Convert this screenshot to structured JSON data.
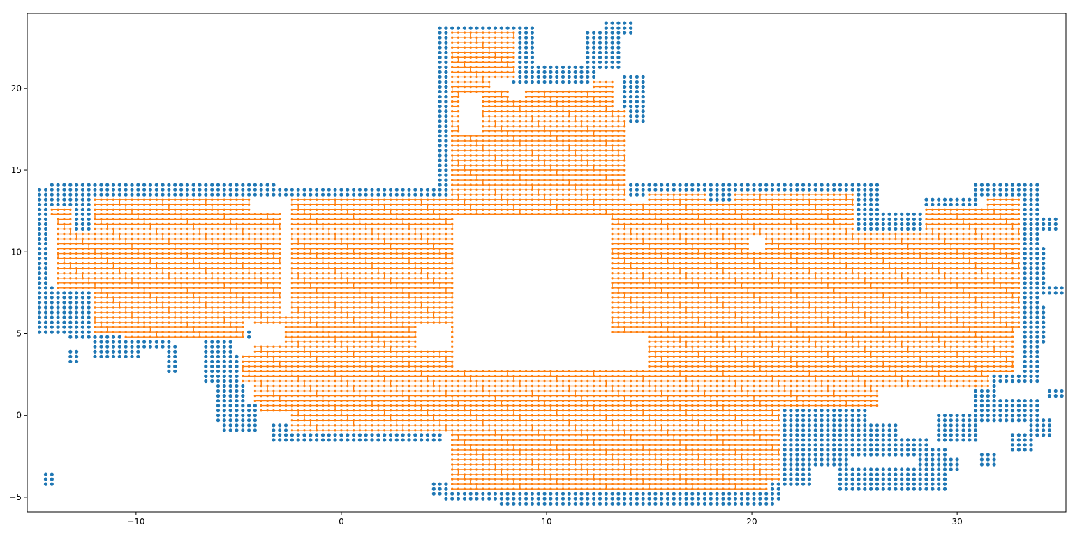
{
  "chart_data": {
    "type": "scatter",
    "title": "",
    "xlabel": "",
    "ylabel": "",
    "xlim": [
      -15.3,
      35.3
    ],
    "ylim": [
      -5.9,
      24.6
    ],
    "xticks": [
      -10,
      0,
      10,
      20,
      30
    ],
    "yticks": [
      -5,
      0,
      5,
      10,
      15,
      20
    ],
    "grid": false,
    "legend": "none",
    "grid_step": 0.3,
    "series": [
      {
        "mark": "point",
        "color": "#1f77b4",
        "rects": [
          [
            -14.7,
            -14.4,
            5.1,
            13.8
          ],
          [
            -14.1,
            -12.0,
            11.1,
            14.1
          ],
          [
            -12.3,
            -3.3,
            13.5,
            14.1
          ],
          [
            -3.3,
            4.5,
            13.5,
            13.8
          ],
          [
            4.8,
            5.4,
            13.5,
            23.7
          ],
          [
            5.4,
            8.4,
            23.4,
            23.7
          ],
          [
            8.4,
            9.3,
            20.4,
            23.7
          ],
          [
            9.3,
            12.3,
            20.4,
            21.3
          ],
          [
            12.0,
            13.5,
            21.3,
            23.4
          ],
          [
            12.9,
            14.1,
            23.4,
            24.0
          ],
          [
            13.8,
            14.7,
            18.0,
            20.7
          ],
          [
            13.8,
            14.7,
            13.5,
            14.1
          ],
          [
            14.7,
            17.4,
            13.5,
            14.1
          ],
          [
            17.4,
            18.9,
            13.2,
            14.1
          ],
          [
            18.9,
            24.9,
            13.5,
            14.1
          ],
          [
            24.9,
            26.1,
            11.1,
            14.1
          ],
          [
            26.1,
            28.5,
            11.1,
            12.3
          ],
          [
            28.5,
            30.9,
            11.7,
            13.2
          ],
          [
            30.9,
            33.3,
            13.5,
            14.1
          ],
          [
            33.3,
            33.9,
            2.7,
            14.1
          ],
          [
            33.9,
            34.8,
            11.4,
            12.0
          ],
          [
            33.9,
            34.2,
            7.5,
            10.2
          ],
          [
            34.5,
            35.1,
            7.5,
            7.8
          ],
          [
            33.9,
            34.2,
            4.5,
            6.6
          ],
          [
            -14.7,
            -12.3,
            5.1,
            7.8
          ],
          [
            -13.2,
            -4.5,
            4.8,
            5.1
          ],
          [
            -12.0,
            -9.9,
            3.6,
            4.8
          ],
          [
            -9.9,
            -8.4,
            4.2,
            4.8
          ],
          [
            -8.4,
            -8.1,
            2.7,
            4.2
          ],
          [
            -6.6,
            -6.3,
            3.9,
            4.8
          ],
          [
            -6.3,
            -5.4,
            3.3,
            4.8
          ],
          [
            -6.6,
            -5.1,
            2.1,
            3.6
          ],
          [
            -6.0,
            -4.8,
            -0.3,
            2.1
          ],
          [
            -5.7,
            -4.2,
            -0.9,
            0.6
          ],
          [
            -3.3,
            -2.1,
            -1.5,
            -0.6
          ],
          [
            -2.7,
            4.8,
            -1.5,
            -1.2
          ],
          [
            3.6,
            5.1,
            4.2,
            5.4
          ],
          [
            4.5,
            6.3,
            -4.8,
            -4.2
          ],
          [
            5.1,
            21.3,
            -5.1,
            -4.5
          ],
          [
            7.8,
            14.7,
            -5.4,
            -4.8
          ],
          [
            15.0,
            21.0,
            -5.4,
            -5.1
          ],
          [
            20.7,
            22.8,
            -4.2,
            -0.6
          ],
          [
            21.3,
            23.4,
            -0.3,
            1.2
          ],
          [
            22.8,
            24.6,
            -3.0,
            -0.6
          ],
          [
            23.4,
            25.5,
            -0.6,
            2.1
          ],
          [
            24.9,
            27.0,
            -2.4,
            -0.6
          ],
          [
            24.3,
            27.9,
            -4.5,
            -3.3
          ],
          [
            27.0,
            28.5,
            -2.4,
            -1.5
          ],
          [
            28.2,
            29.4,
            -4.5,
            -2.1
          ],
          [
            29.1,
            30.9,
            -1.5,
            0.0
          ],
          [
            30.9,
            31.8,
            -0.3,
            2.4
          ],
          [
            31.8,
            33.9,
            -0.3,
            0.9
          ],
          [
            31.5,
            33.9,
            2.1,
            2.4
          ],
          [
            32.7,
            33.6,
            -2.1,
            -1.2
          ],
          [
            33.6,
            34.5,
            -1.2,
            -0.3
          ],
          [
            34.5,
            35.1,
            1.2,
            1.5
          ],
          [
            31.2,
            31.8,
            -3.0,
            -2.4
          ],
          [
            29.4,
            30.0,
            -3.3,
            -2.7
          ],
          [
            -14.4,
            -14.1,
            -4.2,
            -3.6
          ],
          [
            -13.2,
            -12.9,
            3.3,
            3.9
          ]
        ]
      },
      {
        "mark": "path",
        "color": "#ff7f0e",
        "rects": [
          [
            -14.1,
            -13.2,
            11.1,
            12.6
          ],
          [
            -13.8,
            -12.0,
            7.8,
            11.1
          ],
          [
            -12.0,
            -9.0,
            7.8,
            12.9
          ],
          [
            -12.0,
            -4.5,
            12.3,
            13.2
          ],
          [
            -10.5,
            -4.8,
            4.8,
            12.3
          ],
          [
            -4.8,
            -3.0,
            6.0,
            12.3
          ],
          [
            -4.2,
            -2.4,
            3.6,
            6.0
          ],
          [
            -4.8,
            -1.8,
            2.1,
            3.6
          ],
          [
            -4.2,
            -2.7,
            0.9,
            2.1
          ],
          [
            -3.9,
            -1.8,
            0.3,
            1.2
          ],
          [
            -2.4,
            5.4,
            -0.9,
            13.2
          ],
          [
            5.4,
            7.2,
            12.3,
            23.4
          ],
          [
            7.2,
            8.4,
            20.7,
            23.4
          ],
          [
            7.2,
            12.3,
            12.3,
            19.8
          ],
          [
            12.3,
            13.2,
            17.1,
            20.4
          ],
          [
            12.3,
            13.8,
            12.3,
            18.6
          ],
          [
            13.2,
            15.0,
            5.1,
            12.9
          ],
          [
            15.0,
            17.7,
            12.6,
            13.5
          ],
          [
            15.0,
            24.9,
            0.6,
            12.9
          ],
          [
            19.2,
            24.9,
            12.6,
            13.5
          ],
          [
            24.9,
            26.1,
            0.6,
            11.1
          ],
          [
            26.1,
            28.5,
            1.8,
            11.1
          ],
          [
            28.5,
            31.5,
            1.8,
            12.6
          ],
          [
            31.5,
            32.7,
            2.7,
            13.2
          ],
          [
            32.7,
            32.9,
            5.4,
            13.2
          ],
          [
            5.4,
            20.7,
            -4.5,
            0.6
          ],
          [
            5.4,
            21.3,
            -2.7,
            2.7
          ],
          [
            20.4,
            21.3,
            -3.9,
            0.6
          ],
          [
            -1.8,
            5.4,
            -0.9,
            3.9
          ],
          [
            1.2,
            3.6,
            -0.6,
            2.1
          ],
          [
            6.0,
            8.4,
            -4.5,
            -3.6
          ],
          [
            12.0,
            14.4,
            -4.5,
            -3.9
          ],
          [
            16.2,
            18.3,
            -4.5,
            -3.9
          ],
          [
            18.6,
            19.8,
            -4.5,
            -3.9
          ],
          [
            -12.0,
            -7.2,
            5.1,
            7.8
          ],
          [
            -8.1,
            -6.0,
            5.4,
            6.0
          ]
        ]
      }
    ],
    "holes": [
      [
        3.6,
        5.1,
        4.2,
        5.4
      ],
      [
        6.0,
        6.6,
        17.1,
        19.5
      ],
      [
        8.4,
        8.7,
        19.5,
        19.8
      ],
      [
        -4.5,
        -3.0,
        4.5,
        5.4
      ],
      [
        20.0,
        20.4,
        10.2,
        10.8
      ],
      [
        -14.7,
        -14.1,
        11.1,
        12.0
      ]
    ]
  }
}
